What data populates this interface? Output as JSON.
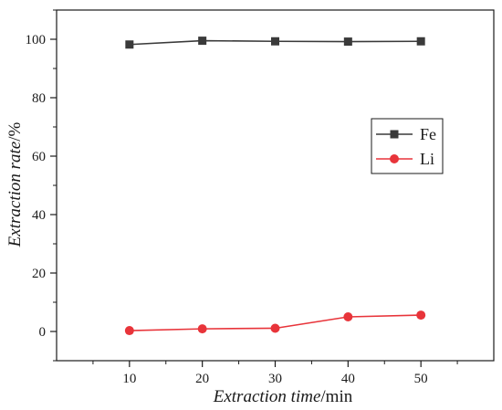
{
  "chart_data": {
    "type": "line",
    "x": [
      10,
      20,
      30,
      40,
      50
    ],
    "series": [
      {
        "name": "Fe",
        "values": [
          98.2,
          99.5,
          99.3,
          99.2,
          99.3
        ],
        "color": "#3a3a3a",
        "marker": "square"
      },
      {
        "name": "Li",
        "values": [
          0.3,
          0.9,
          1.1,
          5.0,
          5.6
        ],
        "color": "#e8343a",
        "marker": "circle"
      }
    ],
    "xlim": [
      0,
      60
    ],
    "ylim": [
      -10,
      110
    ],
    "x_ticks": [
      10,
      20,
      30,
      40,
      50
    ],
    "y_ticks": [
      0,
      20,
      40,
      60,
      80,
      100
    ],
    "xlabel_italic": "Extraction time",
    "xlabel_unit": "/min",
    "ylabel_italic": "Extraction rate",
    "ylabel_unit": "/%",
    "legend_position": "right-middle",
    "grid": false,
    "title": ""
  }
}
